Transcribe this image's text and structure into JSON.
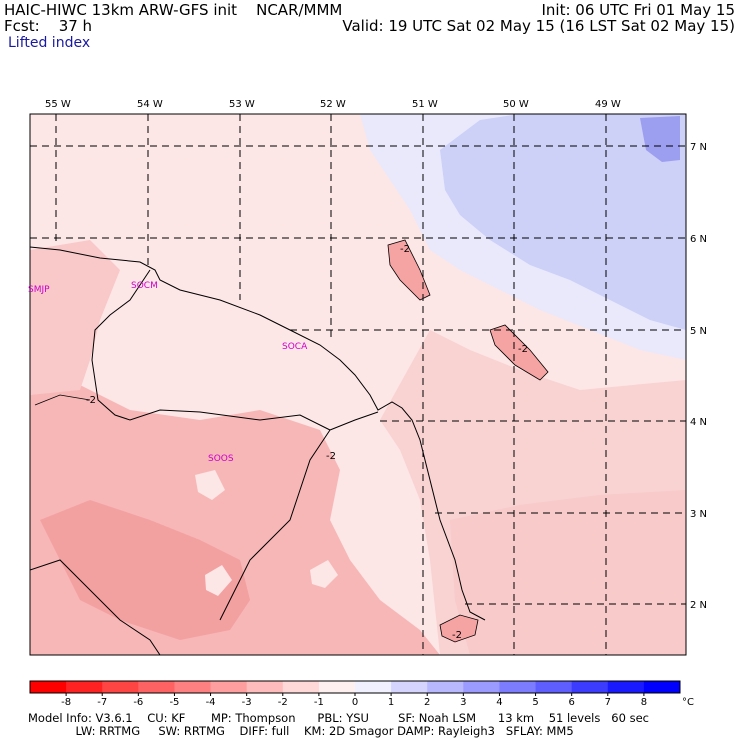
{
  "header": {
    "model_line": "HAIC-HIWC 13km ARW-GFS init    NCAR/MMM",
    "init_line": "Init: 06 UTC Fri 01 May 15",
    "fcst_line": "Fcst:    37 h",
    "valid_line": "Valid: 19 UTC Sat 02 May 15 (16 LST Sat 02 May 15)",
    "field_name": "Lifted index"
  },
  "map": {
    "lon_labels": [
      "55 W",
      "54 W",
      "53 W",
      "52 W",
      "51 W",
      "50 W",
      "49 W"
    ],
    "lat_labels": [
      "7 N",
      "6 N",
      "5 N",
      "4 N",
      "3 N",
      "2 N"
    ],
    "stations": [
      "SMJP",
      "SOCM",
      "SOCA",
      "SOOS"
    ],
    "contour_label": "-2",
    "colors": {
      "neg_light": "#fde0e0",
      "neg_mid": "#f9c4c4",
      "neg_strong": "#f5a3a3",
      "pos_light": "#e9e9fb",
      "pos_mid": "#cdd0f7",
      "pos_strong": "#9c9eef",
      "station": "#cc00cc"
    }
  },
  "colorbar": {
    "ticks": [
      "-8",
      "-7",
      "-6",
      "-5",
      "-4",
      "-3",
      "-2",
      "-1",
      "0",
      "1",
      "2",
      "3",
      "4",
      "5",
      "6",
      "7",
      "8"
    ],
    "unit": "°C",
    "colors": [
      "#ff0000",
      "#ff2222",
      "#ff4444",
      "#ff6262",
      "#ff8080",
      "#ff9e9e",
      "#ffbcbc",
      "#ffd8d8",
      "#fff0f0",
      "#f0f0ff",
      "#d4d4ff",
      "#b8b8ff",
      "#9a9aff",
      "#7c7cff",
      "#5e5eff",
      "#3c3cff",
      "#1a1aff",
      "#0000ff"
    ]
  },
  "footer": {
    "line1": "Model Info: V3.6.1    CU: KF       MP: Thompson      PBL: YSU        SF: Noah LSM      13 km    51 levels   60 sec",
    "line2": "             LW: RRTMG     SW: RRTMG    DIFF: full    KM: 2D Smagor DAMP: Rayleigh3   SFLAY: MM5"
  }
}
